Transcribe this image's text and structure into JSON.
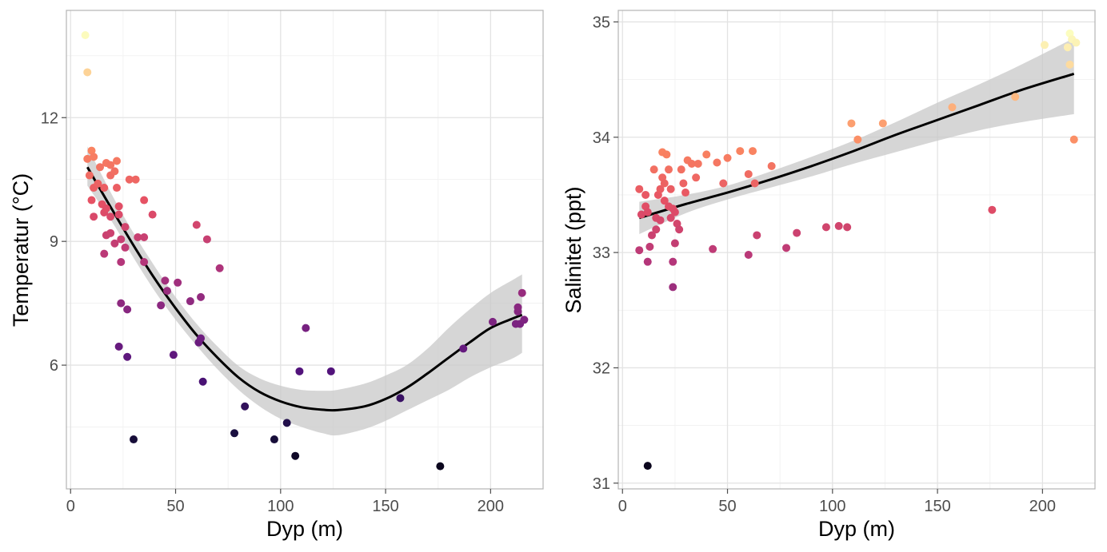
{
  "colors": {
    "background": "#ffffff",
    "panel_border": "#b3b3b3",
    "grid_major": "#e3e3e3",
    "grid_minor": "#f1f1f1",
    "fit_line": "#000000",
    "ci_band": "#c8c8c8",
    "palette": "magma"
  },
  "chart_data": [
    {
      "type": "scatter",
      "name": "temperature-vs-depth",
      "title": "",
      "xlabel": "Dyp (m)",
      "ylabel": "Temperatur (°C)",
      "xlim": [
        -2,
        225
      ],
      "ylim": [
        3.0,
        14.6
      ],
      "x_ticks": [
        0,
        50,
        100,
        150,
        200
      ],
      "x_tick_labels": [
        "0",
        "50",
        "100",
        "150",
        "200"
      ],
      "y_ticks": [
        6,
        9,
        12
      ],
      "y_tick_labels": [
        "6",
        "9",
        "12"
      ],
      "grid": true,
      "legend": "none",
      "color_by": "depth",
      "points": [
        {
          "x": 7,
          "y": 14.0
        },
        {
          "x": 8,
          "y": 13.1
        },
        {
          "x": 8,
          "y": 11.0
        },
        {
          "x": 10,
          "y": 11.2
        },
        {
          "x": 11,
          "y": 11.05
        },
        {
          "x": 9,
          "y": 10.6
        },
        {
          "x": 11,
          "y": 10.3
        },
        {
          "x": 13,
          "y": 10.4
        },
        {
          "x": 10,
          "y": 10.0
        },
        {
          "x": 14,
          "y": 10.8
        },
        {
          "x": 17,
          "y": 10.9
        },
        {
          "x": 19,
          "y": 10.85
        },
        {
          "x": 22,
          "y": 10.95
        },
        {
          "x": 19,
          "y": 10.6
        },
        {
          "x": 21,
          "y": 10.7
        },
        {
          "x": 16,
          "y": 10.3
        },
        {
          "x": 22,
          "y": 10.3
        },
        {
          "x": 28,
          "y": 10.5
        },
        {
          "x": 31,
          "y": 10.5
        },
        {
          "x": 11,
          "y": 9.6
        },
        {
          "x": 15,
          "y": 9.9
        },
        {
          "x": 16,
          "y": 9.7
        },
        {
          "x": 17,
          "y": 9.8
        },
        {
          "x": 19,
          "y": 9.6
        },
        {
          "x": 23,
          "y": 9.85
        },
        {
          "x": 23,
          "y": 9.65
        },
        {
          "x": 35,
          "y": 10.0
        },
        {
          "x": 39,
          "y": 9.65
        },
        {
          "x": 17,
          "y": 9.15
        },
        {
          "x": 19,
          "y": 9.2
        },
        {
          "x": 26,
          "y": 9.35
        },
        {
          "x": 32,
          "y": 9.1
        },
        {
          "x": 35,
          "y": 9.1
        },
        {
          "x": 21,
          "y": 8.95
        },
        {
          "x": 24,
          "y": 9.05
        },
        {
          "x": 26,
          "y": 8.85
        },
        {
          "x": 16,
          "y": 8.7
        },
        {
          "x": 24,
          "y": 8.5
        },
        {
          "x": 35,
          "y": 8.5
        },
        {
          "x": 60,
          "y": 9.4
        },
        {
          "x": 65,
          "y": 9.05
        },
        {
          "x": 71,
          "y": 8.35
        },
        {
          "x": 45,
          "y": 8.05
        },
        {
          "x": 51,
          "y": 8.0
        },
        {
          "x": 46,
          "y": 7.8
        },
        {
          "x": 57,
          "y": 7.55
        },
        {
          "x": 62,
          "y": 7.65
        },
        {
          "x": 24,
          "y": 7.5
        },
        {
          "x": 27,
          "y": 7.35
        },
        {
          "x": 43,
          "y": 7.45
        },
        {
          "x": 23,
          "y": 6.45
        },
        {
          "x": 27,
          "y": 6.2
        },
        {
          "x": 49,
          "y": 6.25
        },
        {
          "x": 61,
          "y": 6.55
        },
        {
          "x": 62,
          "y": 6.65
        },
        {
          "x": 63,
          "y": 5.6
        },
        {
          "x": 30,
          "y": 4.2
        },
        {
          "x": 78,
          "y": 4.35
        },
        {
          "x": 83,
          "y": 5.0
        },
        {
          "x": 97,
          "y": 4.2
        },
        {
          "x": 103,
          "y": 4.6
        },
        {
          "x": 107,
          "y": 3.8
        },
        {
          "x": 109,
          "y": 5.85
        },
        {
          "x": 112,
          "y": 6.9
        },
        {
          "x": 124,
          "y": 5.85
        },
        {
          "x": 157,
          "y": 5.2
        },
        {
          "x": 176,
          "y": 3.55
        },
        {
          "x": 187,
          "y": 6.4
        },
        {
          "x": 201,
          "y": 7.05
        },
        {
          "x": 212,
          "y": 7.0
        },
        {
          "x": 213,
          "y": 7.3
        },
        {
          "x": 213,
          "y": 7.4
        },
        {
          "x": 214,
          "y": 7.0
        },
        {
          "x": 215,
          "y": 7.75
        },
        {
          "x": 216,
          "y": 7.1
        }
      ],
      "fit": {
        "x": [
          8,
          20,
          30,
          40,
          50,
          60,
          70,
          80,
          90,
          100,
          110,
          120,
          127,
          140,
          150,
          160,
          170,
          180,
          190,
          200,
          210,
          215
        ],
        "y": [
          10.8,
          9.75,
          8.9,
          8.1,
          7.38,
          6.73,
          6.18,
          5.7,
          5.35,
          5.12,
          4.98,
          4.92,
          4.91,
          5.0,
          5.18,
          5.45,
          5.8,
          6.18,
          6.55,
          6.9,
          7.12,
          7.22
        ],
        "lower": [
          10.35,
          9.45,
          8.6,
          7.8,
          7.1,
          6.47,
          5.9,
          5.4,
          5.0,
          4.7,
          4.5,
          4.35,
          4.3,
          4.45,
          4.65,
          4.9,
          5.15,
          5.4,
          5.7,
          5.95,
          6.15,
          6.3
        ],
        "upper": [
          11.3,
          10.1,
          9.2,
          8.4,
          7.65,
          7.0,
          6.45,
          5.98,
          5.68,
          5.5,
          5.4,
          5.38,
          5.4,
          5.55,
          5.75,
          6.0,
          6.4,
          6.9,
          7.35,
          7.75,
          8.05,
          8.2
        ]
      }
    },
    {
      "type": "scatter",
      "name": "salinity-vs-depth",
      "title": "",
      "xlabel": "Dyp (m)",
      "ylabel": "Salinitet (ppt)",
      "xlim": [
        -2,
        225
      ],
      "ylim": [
        30.95,
        35.1
      ],
      "x_ticks": [
        0,
        50,
        100,
        150,
        200
      ],
      "x_tick_labels": [
        "0",
        "50",
        "100",
        "150",
        "200"
      ],
      "y_ticks": [
        31,
        32,
        33,
        34,
        35
      ],
      "y_tick_labels": [
        "31",
        "32",
        "33",
        "34",
        "35"
      ],
      "grid": true,
      "legend": "none",
      "color_by": "depth",
      "points": [
        {
          "x": 8,
          "y": 33.55
        },
        {
          "x": 8,
          "y": 33.02
        },
        {
          "x": 9,
          "y": 33.33
        },
        {
          "x": 11,
          "y": 33.5
        },
        {
          "x": 11,
          "y": 33.4
        },
        {
          "x": 12,
          "y": 33.35
        },
        {
          "x": 13,
          "y": 33.05
        },
        {
          "x": 12,
          "y": 32.92
        },
        {
          "x": 12,
          "y": 31.15
        },
        {
          "x": 14,
          "y": 33.15
        },
        {
          "x": 15,
          "y": 33.72
        },
        {
          "x": 16,
          "y": 33.3
        },
        {
          "x": 16,
          "y": 33.2
        },
        {
          "x": 17,
          "y": 33.5
        },
        {
          "x": 18,
          "y": 33.55
        },
        {
          "x": 18,
          "y": 33.28
        },
        {
          "x": 19,
          "y": 33.65
        },
        {
          "x": 19,
          "y": 33.87
        },
        {
          "x": 20,
          "y": 33.6
        },
        {
          "x": 20,
          "y": 33.45
        },
        {
          "x": 21,
          "y": 33.85
        },
        {
          "x": 22,
          "y": 33.72
        },
        {
          "x": 22,
          "y": 33.4
        },
        {
          "x": 23,
          "y": 33.55
        },
        {
          "x": 23,
          "y": 33.3
        },
        {
          "x": 24,
          "y": 33.38
        },
        {
          "x": 24,
          "y": 32.92
        },
        {
          "x": 24,
          "y": 32.7
        },
        {
          "x": 25,
          "y": 33.08
        },
        {
          "x": 25,
          "y": 33.35
        },
        {
          "x": 26,
          "y": 33.25
        },
        {
          "x": 27,
          "y": 33.2
        },
        {
          "x": 28,
          "y": 33.72
        },
        {
          "x": 29,
          "y": 33.6
        },
        {
          "x": 30,
          "y": 33.52
        },
        {
          "x": 31,
          "y": 33.8
        },
        {
          "x": 33,
          "y": 33.77
        },
        {
          "x": 35,
          "y": 33.65
        },
        {
          "x": 36,
          "y": 33.77
        },
        {
          "x": 40,
          "y": 33.85
        },
        {
          "x": 43,
          "y": 33.03
        },
        {
          "x": 45,
          "y": 33.78
        },
        {
          "x": 48,
          "y": 33.6
        },
        {
          "x": 50,
          "y": 33.82
        },
        {
          "x": 56,
          "y": 33.88
        },
        {
          "x": 60,
          "y": 33.68
        },
        {
          "x": 60,
          "y": 32.98
        },
        {
          "x": 62,
          "y": 33.88
        },
        {
          "x": 63,
          "y": 33.6
        },
        {
          "x": 64,
          "y": 33.15
        },
        {
          "x": 71,
          "y": 33.75
        },
        {
          "x": 78,
          "y": 33.04
        },
        {
          "x": 83,
          "y": 33.17
        },
        {
          "x": 97,
          "y": 33.22
        },
        {
          "x": 103,
          "y": 33.23
        },
        {
          "x": 107,
          "y": 33.22
        },
        {
          "x": 109,
          "y": 34.12
        },
        {
          "x": 112,
          "y": 33.98
        },
        {
          "x": 124,
          "y": 34.12
        },
        {
          "x": 157,
          "y": 34.26
        },
        {
          "x": 176,
          "y": 33.37
        },
        {
          "x": 187,
          "y": 34.35
        },
        {
          "x": 201,
          "y": 34.8
        },
        {
          "x": 212,
          "y": 34.78
        },
        {
          "x": 213,
          "y": 34.9
        },
        {
          "x": 213,
          "y": 34.63
        },
        {
          "x": 214,
          "y": 34.85
        },
        {
          "x": 215,
          "y": 33.98
        },
        {
          "x": 216,
          "y": 34.82
        }
      ],
      "fit": {
        "x": [
          8,
          30,
          50,
          70,
          90,
          110,
          130,
          150,
          170,
          190,
          215
        ],
        "y": [
          33.3,
          33.42,
          33.52,
          33.63,
          33.75,
          33.88,
          34.02,
          34.15,
          34.28,
          34.41,
          34.55
        ],
        "lower": [
          33.16,
          33.34,
          33.46,
          33.56,
          33.66,
          33.77,
          33.87,
          33.97,
          34.06,
          34.13,
          34.2
        ],
        "upper": [
          33.44,
          33.5,
          33.58,
          33.7,
          33.83,
          33.97,
          34.13,
          34.3,
          34.46,
          34.63,
          34.86
        ]
      }
    }
  ]
}
